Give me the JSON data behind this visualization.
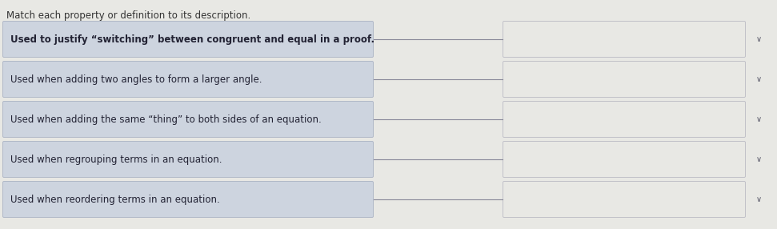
{
  "title": "Match each property or definition to its description.",
  "title_fontsize": 8.5,
  "title_color": "#333333",
  "background_color": "#f0f0f0",
  "page_bg_color": "#e8e8e4",
  "left_box_color": "#cdd4df",
  "left_box_edge_color": "#b0b8c8",
  "right_box_color": "#e8e8e4",
  "right_box_edge_color": "#c0c0c8",
  "line_color": "#888899",
  "chevron_color": "#555566",
  "items": [
    "Used to justify “switching” between congruent and equal in a proof.",
    "Used when adding two angles to form a larger angle.",
    "Used when adding the same “thing” to both sides of an equation.",
    "Used when regrouping terms in an equation.",
    "Used when reordering terms in an equation."
  ],
  "n_items": 5,
  "text_fontsize": 8.5,
  "text_color": "#222233"
}
